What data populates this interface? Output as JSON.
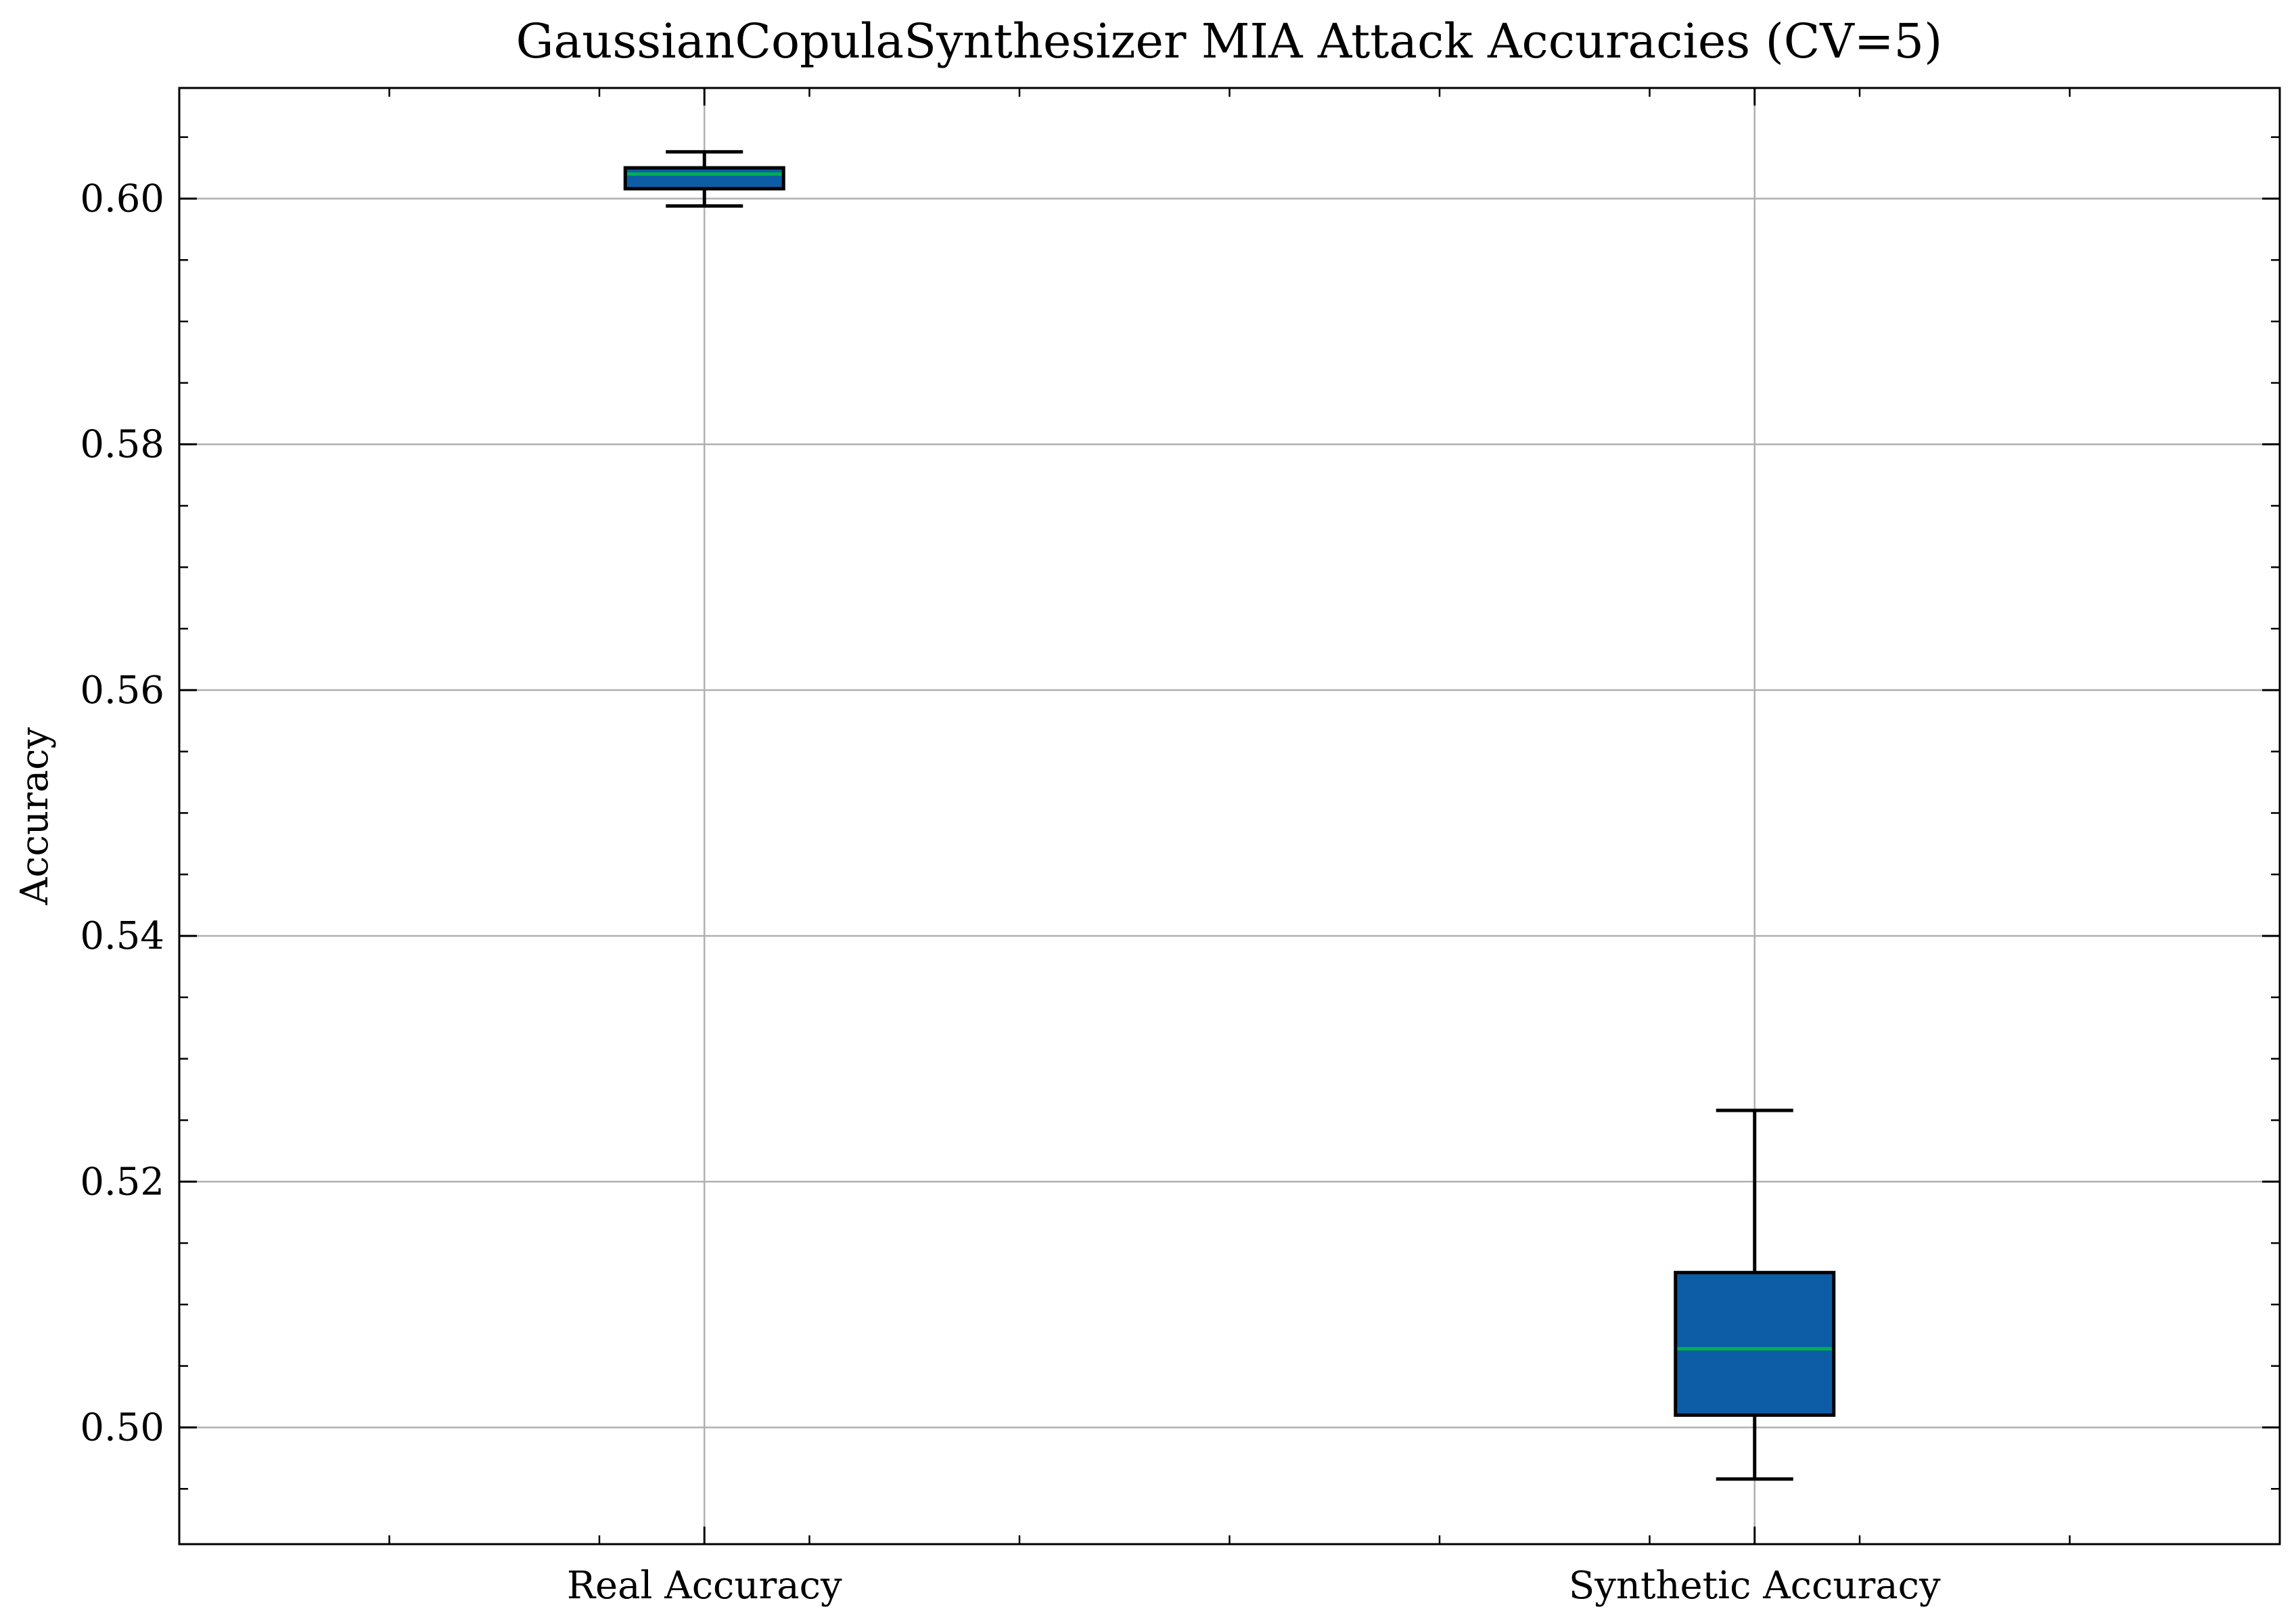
{
  "chart_data": {
    "type": "box",
    "title": "GaussianCopulaSynthesizer MIA Attack Accuracies (CV=5)",
    "xlabel": "",
    "ylabel": "Accuracy",
    "categories": [
      "Real Accuracy",
      "Synthetic Accuracy"
    ],
    "boxes": [
      {
        "category": "Real Accuracy",
        "whisker_low": 0.5994,
        "q1": 0.6008,
        "median": 0.602,
        "q3": 0.6025,
        "whisker_high": 0.6038
      },
      {
        "category": "Synthetic Accuracy",
        "whisker_low": 0.4958,
        "q1": 0.501,
        "median": 0.5064,
        "q3": 0.5126,
        "whisker_high": 0.5258
      }
    ],
    "ylim": [
      0.4905,
      0.609
    ],
    "yticks": [
      0.5,
      0.52,
      0.54,
      0.56,
      0.58,
      0.6
    ],
    "ytick_labels": [
      "0.50",
      "0.52",
      "0.54",
      "0.56",
      "0.58",
      "0.60"
    ],
    "grid": true,
    "legend": "none",
    "colors": {
      "box_fill": "#0c5da5",
      "median": "#00b050",
      "edge": "#000000",
      "grid": "#b0b0b0"
    }
  }
}
